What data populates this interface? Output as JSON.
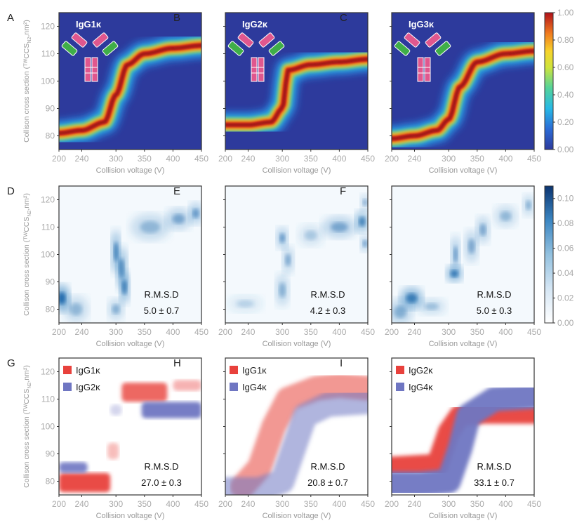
{
  "colors": {
    "axis": "#333333",
    "tick_label": "#aaaaaa",
    "axis_label": "#999999",
    "jet_bg": "#2d3a9c",
    "diff_red": "#e8413c",
    "diff_blue": "#6f76c2",
    "blues_dark": "#08306b"
  },
  "axes_text": {
    "xlabel": "Collision voltage (V)",
    "ylabel": "Collison cross section (ᵀᵂCCS",
    "ylabel_sub": "N2",
    "ylabel_tail": ",nm²)"
  },
  "chart_data": [
    {
      "type": "heatmap",
      "panel": "A",
      "title": "IgG1κ",
      "colormap": "jet",
      "x": [
        200,
        450
      ],
      "y": [
        75,
        125
      ],
      "xticks": [
        200,
        240,
        300,
        350,
        400,
        450
      ],
      "yticks": [
        80,
        90,
        100,
        110,
        120
      ],
      "xlim": [
        200,
        450
      ],
      "ylim": [
        75,
        125
      ],
      "ridge": {
        "x": [
          200,
          240,
          280,
          300,
          320,
          350,
          400,
          450
        ],
        "y": [
          81,
          82,
          85,
          95,
          106,
          110,
          112,
          113
        ]
      }
    },
    {
      "type": "heatmap",
      "panel": "B",
      "title": "IgG2κ",
      "colormap": "jet",
      "x": [
        200,
        450
      ],
      "y": [
        75,
        125
      ],
      "xticks": [
        200,
        240,
        300,
        350,
        400,
        450
      ],
      "yticks": [
        80,
        90,
        100,
        110,
        120
      ],
      "xlim": [
        200,
        450
      ],
      "ylim": [
        75,
        125
      ],
      "ridge": {
        "x": [
          200,
          240,
          280,
          300,
          310,
          350,
          400,
          450
        ],
        "y": [
          84,
          84,
          85,
          90,
          104,
          106,
          107,
          108
        ]
      }
    },
    {
      "type": "heatmap",
      "panel": "C",
      "title": "IgG3κ",
      "colormap": "jet",
      "x": [
        200,
        450
      ],
      "y": [
        75,
        125
      ],
      "xticks": [
        200,
        240,
        300,
        350,
        400,
        450
      ],
      "yticks": [
        80,
        90,
        100,
        110,
        120
      ],
      "xlim": [
        200,
        450
      ],
      "ylim": [
        75,
        125
      ],
      "ridge": {
        "x": [
          200,
          240,
          280,
          300,
          320,
          350,
          400,
          450
        ],
        "y": [
          79,
          80,
          82,
          86,
          98,
          107,
          110,
          111
        ]
      }
    },
    {
      "type": "heatmap",
      "panel": "D",
      "colormap": "blues",
      "annotation": "R.M.S.D",
      "rmsd": "5.0 ± 0.7",
      "xticks": [
        200,
        240,
        300,
        350,
        400,
        450
      ],
      "yticks": [
        80,
        90,
        100,
        110,
        120
      ],
      "xlim": [
        200,
        450
      ],
      "ylim": [
        75,
        125
      ]
    },
    {
      "type": "heatmap",
      "panel": "E",
      "colormap": "blues",
      "annotation": "R.M.S.D",
      "rmsd": "4.2 ± 0.3",
      "xticks": [
        200,
        240,
        300,
        350,
        400,
        450
      ],
      "yticks": [
        80,
        90,
        100,
        110,
        120
      ],
      "xlim": [
        200,
        450
      ],
      "ylim": [
        75,
        125
      ]
    },
    {
      "type": "heatmap",
      "panel": "F",
      "colormap": "blues",
      "annotation": "R.M.S.D",
      "rmsd": "5.0 ± 0.3",
      "xticks": [
        200,
        240,
        300,
        350,
        400,
        450
      ],
      "yticks": [
        80,
        90,
        100,
        110,
        120
      ],
      "xlim": [
        200,
        450
      ],
      "ylim": [
        75,
        125
      ]
    },
    {
      "type": "heatmap",
      "panel": "G",
      "colormap": "diverging",
      "annotation": "R.M.S.D",
      "rmsd": "27.0 ± 0.3",
      "legend": [
        "IgG1κ",
        "IgG2κ"
      ],
      "legend_position": "top-left",
      "xticks": [
        200,
        240,
        300,
        350,
        400,
        450
      ],
      "yticks": [
        80,
        90,
        100,
        110,
        120
      ],
      "xlim": [
        200,
        450
      ],
      "ylim": [
        75,
        125
      ]
    },
    {
      "type": "heatmap",
      "panel": "H",
      "colormap": "diverging",
      "annotation": "R.M.S.D",
      "rmsd": "20.8 ± 0.7",
      "legend": [
        "IgG1κ",
        "IgG4κ"
      ],
      "legend_position": "top-left",
      "xticks": [
        200,
        240,
        300,
        350,
        400,
        450
      ],
      "yticks": [
        80,
        90,
        100,
        110,
        120
      ],
      "xlim": [
        200,
        450
      ],
      "ylim": [
        75,
        125
      ]
    },
    {
      "type": "heatmap",
      "panel": "I",
      "colormap": "diverging",
      "annotation": "R.M.S.D",
      "rmsd": "33.1 ± 0.7",
      "legend": [
        "IgG2κ",
        "IgG4κ"
      ],
      "legend_position": "top-left",
      "xticks": [
        200,
        240,
        300,
        350,
        400,
        450
      ],
      "yticks": [
        80,
        90,
        100,
        110,
        120
      ],
      "xlim": [
        200,
        450
      ],
      "ylim": [
        75,
        125
      ]
    }
  ],
  "colorbars": [
    {
      "row": 1,
      "colormap": "jet",
      "ticks": [
        "1.00",
        "0.80",
        "0.60",
        "0.40",
        "0.20",
        "0.00"
      ],
      "range": [
        0,
        1
      ]
    },
    {
      "row": 2,
      "colormap": "blues",
      "ticks": [
        "0.10",
        "0.08",
        "0.06",
        "0.04",
        "0.02",
        "0.00"
      ],
      "range": [
        0,
        0.11
      ]
    }
  ]
}
